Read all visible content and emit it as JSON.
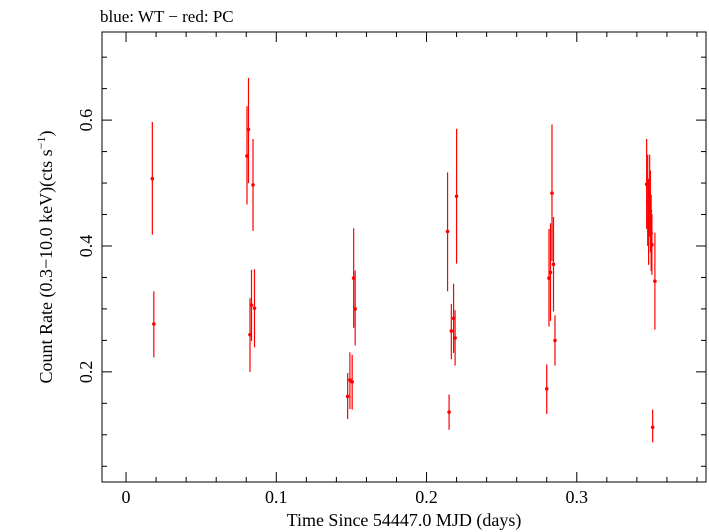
{
  "chart_data": {
    "type": "scatter",
    "title": "blue: WT − red: PC",
    "xlabel": "Time Since 54447.0 MJD (days)",
    "ylabel_main": "Count Rate (0.3−10.0 keV)(cts s",
    "ylabel_sup": "−1",
    "ylabel_close": ")",
    "xlim": [
      -0.016,
      0.386
    ],
    "ylim": [
      0.025,
      0.74
    ],
    "xticks": [
      0,
      0.1,
      0.2,
      0.3
    ],
    "xtick_labels": [
      "0",
      "0.1",
      "0.2",
      "0.3"
    ],
    "yticks": [
      0.2,
      0.4,
      0.6
    ],
    "ytick_labels": [
      "0.2",
      "0.4",
      "0.6"
    ],
    "grid": false,
    "series": [
      {
        "color": "#ff0000",
        "points": [
          {
            "x": 0.0175,
            "y": 0.507,
            "lo": 0.418,
            "hi": 0.597
          },
          {
            "x": 0.0185,
            "y": 0.276,
            "lo": 0.223,
            "hi": 0.328
          },
          {
            "x": 0.0805,
            "y": 0.543,
            "lo": 0.466,
            "hi": 0.622
          },
          {
            "x": 0.0815,
            "y": 0.585,
            "lo": 0.5,
            "hi": 0.667
          },
          {
            "x": 0.0825,
            "y": 0.259,
            "lo": 0.2,
            "hi": 0.317
          },
          {
            "x": 0.0835,
            "y": 0.306,
            "lo": 0.249,
            "hi": 0.362
          },
          {
            "x": 0.0845,
            "y": 0.497,
            "lo": 0.424,
            "hi": 0.57
          },
          {
            "x": 0.0855,
            "y": 0.301,
            "lo": 0.239,
            "hi": 0.363
          },
          {
            "x": 0.1475,
            "y": 0.161,
            "lo": 0.125,
            "hi": 0.198
          },
          {
            "x": 0.149,
            "y": 0.187,
            "lo": 0.141,
            "hi": 0.231
          },
          {
            "x": 0.1505,
            "y": 0.184,
            "lo": 0.14,
            "hi": 0.227
          },
          {
            "x": 0.1515,
            "y": 0.349,
            "lo": 0.27,
            "hi": 0.428
          },
          {
            "x": 0.1525,
            "y": 0.3,
            "lo": 0.242,
            "hi": 0.361
          },
          {
            "x": 0.214,
            "y": 0.423,
            "lo": 0.328,
            "hi": 0.517
          },
          {
            "x": 0.215,
            "y": 0.136,
            "lo": 0.108,
            "hi": 0.164
          },
          {
            "x": 0.2165,
            "y": 0.265,
            "lo": 0.22,
            "hi": 0.308
          },
          {
            "x": 0.218,
            "y": 0.285,
            "lo": 0.23,
            "hi": 0.34
          },
          {
            "x": 0.219,
            "y": 0.254,
            "lo": 0.21,
            "hi": 0.298
          },
          {
            "x": 0.22,
            "y": 0.479,
            "lo": 0.372,
            "hi": 0.586
          },
          {
            "x": 0.28,
            "y": 0.173,
            "lo": 0.133,
            "hi": 0.212
          },
          {
            "x": 0.2815,
            "y": 0.349,
            "lo": 0.272,
            "hi": 0.427
          },
          {
            "x": 0.2825,
            "y": 0.358,
            "lo": 0.281,
            "hi": 0.436
          },
          {
            "x": 0.2835,
            "y": 0.484,
            "lo": 0.376,
            "hi": 0.593
          },
          {
            "x": 0.2845,
            "y": 0.371,
            "lo": 0.296,
            "hi": 0.446
          },
          {
            "x": 0.2855,
            "y": 0.25,
            "lo": 0.21,
            "hi": 0.29
          },
          {
            "x": 0.3465,
            "y": 0.498,
            "lo": 0.427,
            "hi": 0.57
          },
          {
            "x": 0.3472,
            "y": 0.47,
            "lo": 0.4,
            "hi": 0.545
          },
          {
            "x": 0.3478,
            "y": 0.438,
            "lo": 0.37,
            "hi": 0.507
          },
          {
            "x": 0.3485,
            "y": 0.48,
            "lo": 0.415,
            "hi": 0.545
          },
          {
            "x": 0.349,
            "y": 0.455,
            "lo": 0.39,
            "hi": 0.52
          },
          {
            "x": 0.3495,
            "y": 0.42,
            "lo": 0.36,
            "hi": 0.481
          },
          {
            "x": 0.35,
            "y": 0.402,
            "lo": 0.354,
            "hi": 0.451
          },
          {
            "x": 0.3505,
            "y": 0.112,
            "lo": 0.088,
            "hi": 0.14
          },
          {
            "x": 0.352,
            "y": 0.344,
            "lo": 0.267,
            "hi": 0.421
          }
        ]
      }
    ]
  }
}
